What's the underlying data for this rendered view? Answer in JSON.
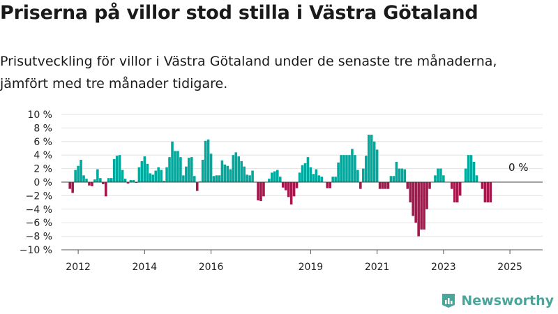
{
  "title": "Priserna på villor stod stilla i Västra Götaland",
  "subtitle": "Prisutveckling för villor i Västra Götaland under de senaste tre månaderna, jämfört med tre månader tidigare.",
  "brand": "Newsworthy",
  "colors": {
    "positive": "#00a99d",
    "negative": "#a3174c",
    "brand": "#4aa59a"
  },
  "chart_data": {
    "type": "bar",
    "title": "",
    "xlabel": "",
    "ylabel": "",
    "ylim": [
      -10,
      10
    ],
    "yticks": [
      "10 %",
      "8 %",
      "6 %",
      "4 %",
      "2 %",
      "0 %",
      "−2 %",
      "−4 %",
      "−6 %",
      "−8 %",
      "−10 %"
    ],
    "xticks": [
      "2012",
      "2014",
      "2016",
      "2019",
      "2021",
      "2023",
      "2025"
    ],
    "annotation": "0 %",
    "x_start": "2011-10",
    "x_interval": "month",
    "values": [
      -1,
      -1.6,
      1.8,
      2.4,
      3.3,
      1,
      0.5,
      -0.5,
      -0.6,
      0.4,
      1.9,
      0.6,
      -0.3,
      -2.1,
      0.6,
      0.6,
      3.4,
      3.9,
      4,
      1.8,
      0.5,
      -0.2,
      0.3,
      0.3,
      -0.1,
      2.2,
      3.1,
      3.8,
      2.7,
      1.3,
      1.1,
      1.7,
      2.2,
      1.8,
      0.2,
      2.2,
      3.7,
      6,
      4.6,
      4.6,
      3.7,
      1,
      2.3,
      3.6,
      3.7,
      0.9,
      -1.3,
      0.1,
      3.3,
      6.1,
      6.3,
      4.2,
      0.9,
      1,
      1,
      3.2,
      2.6,
      2.4,
      1.9,
      4,
      4.4,
      3.8,
      3.1,
      2.3,
      1.1,
      1,
      1.7,
      0,
      -2.7,
      -2.8,
      -2.1,
      0,
      0.5,
      1.4,
      1.6,
      1.8,
      0.8,
      -0.8,
      -1.2,
      -2.2,
      -3.3,
      -2.1,
      -0.9,
      1.4,
      2.5,
      2.8,
      3.7,
      2.2,
      1.2,
      1.9,
      1,
      0.8,
      0,
      -0.9,
      -0.9,
      0.8,
      0.8,
      2.9,
      4,
      4,
      4,
      4,
      4.9,
      4,
      1.8,
      -1,
      2,
      3.9,
      7,
      7,
      6,
      4.8,
      -1,
      -1,
      -1,
      -1,
      0.9,
      0.9,
      3,
      2,
      2,
      1.9,
      -1,
      -3,
      -5,
      -6,
      -8,
      -7,
      -7,
      -4,
      -1,
      0,
      1,
      2,
      2,
      1,
      0,
      0,
      -1,
      -3,
      -3,
      -2,
      0,
      2,
      4,
      4,
      3,
      1,
      0,
      -1,
      -3,
      -3,
      -3,
      0
    ]
  }
}
